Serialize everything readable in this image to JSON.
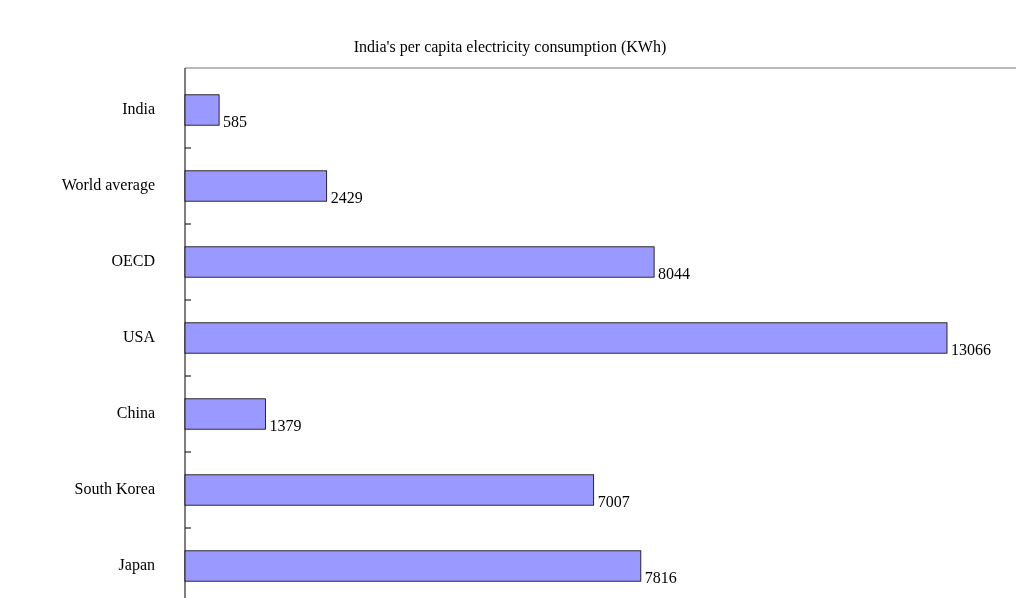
{
  "chart_data": {
    "type": "bar",
    "orientation": "horizontal",
    "title": "India's per capita electricity consumption (KWh)",
    "categories": [
      "India",
      "World average",
      "OECD",
      "USA",
      "China",
      "South Korea",
      "Japan"
    ],
    "values": [
      585,
      2429,
      8044,
      13066,
      1379,
      7007,
      7816
    ],
    "color": "#9999ff",
    "data_labels": true
  }
}
